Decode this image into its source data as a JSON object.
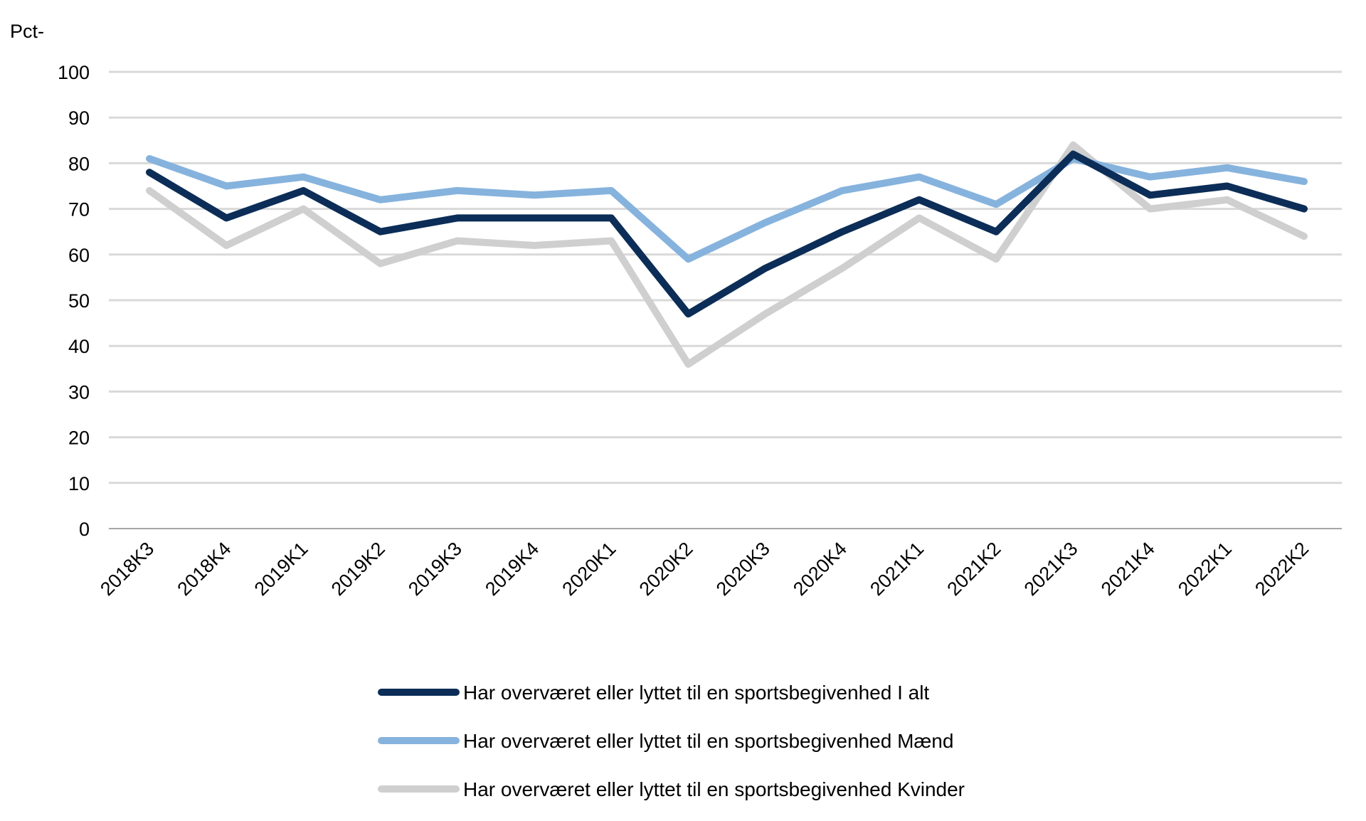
{
  "chart_data": {
    "type": "line",
    "ylabel": "Pct-",
    "ylim": [
      0,
      100
    ],
    "yticks": [
      "0",
      "10",
      "20",
      "30",
      "40",
      "50",
      "60",
      "70",
      "80",
      "90",
      "100"
    ],
    "categories": [
      "2018K3",
      "2018K4",
      "2019K1",
      "2019K2",
      "2019K3",
      "2019K4",
      "2020K1",
      "2020K2",
      "2020K3",
      "2020K4",
      "2021K1",
      "2021K2",
      "2021K3",
      "2021K4",
      "2022K1",
      "2022K2"
    ],
    "grid": true,
    "legend_position": "bottom",
    "series": [
      {
        "name": "Har overværet eller lyttet til en sportsbegivenhed I alt",
        "color": "#0b2d57",
        "values": [
          78,
          68,
          74,
          65,
          68,
          68,
          68,
          47,
          57,
          65,
          72,
          65,
          82,
          73,
          75,
          70
        ]
      },
      {
        "name": "Har overværet eller lyttet til en sportsbegivenhed Mænd",
        "color": "#86b3dd",
        "values": [
          81,
          75,
          77,
          72,
          74,
          73,
          74,
          59,
          67,
          74,
          77,
          71,
          81,
          77,
          79,
          76
        ]
      },
      {
        "name": "Har overværet eller lyttet til en sportsbegivenhed Kvinder",
        "color": "#cfcfcf",
        "values": [
          74,
          62,
          70,
          58,
          63,
          62,
          63,
          36,
          47,
          57,
          68,
          59,
          84,
          70,
          72,
          64
        ]
      }
    ]
  }
}
